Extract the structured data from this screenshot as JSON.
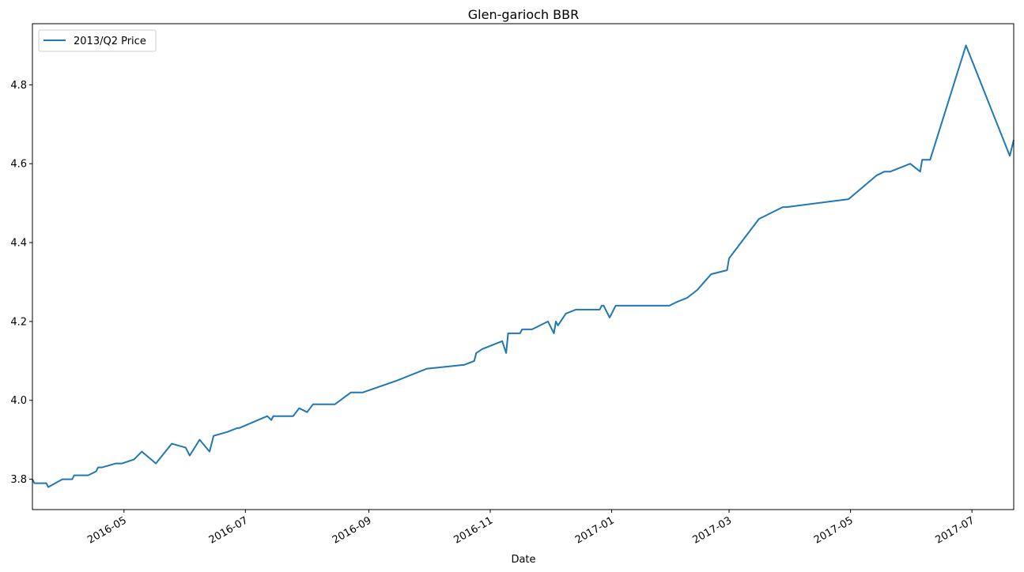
{
  "chart_data": {
    "type": "line",
    "title": "Glen-garioch BBR",
    "xlabel": "Date",
    "ylabel": "",
    "grid": false,
    "legend_position": "top-left",
    "xlim": [
      "2016-03-16",
      "2017-07-22"
    ],
    "ylim": [
      3.723,
      4.955
    ],
    "x_ticks": [
      "2016-05",
      "2016-07",
      "2016-09",
      "2016-11",
      "2017-01",
      "2017-03",
      "2017-05",
      "2017-07"
    ],
    "y_ticks": [
      "3.8",
      "4.0",
      "4.2",
      "4.4",
      "4.6",
      "4.8"
    ],
    "series": [
      {
        "name": "2013/Q2 Price",
        "color": "#1f77b4",
        "points": [
          [
            "2016-03-16",
            3.8
          ],
          [
            "2016-03-17",
            3.79
          ],
          [
            "2016-03-23",
            3.79
          ],
          [
            "2016-03-24",
            3.78
          ],
          [
            "2016-03-31",
            3.8
          ],
          [
            "2016-04-05",
            3.8
          ],
          [
            "2016-04-06",
            3.81
          ],
          [
            "2016-04-13",
            3.81
          ],
          [
            "2016-04-17",
            3.82
          ],
          [
            "2016-04-18",
            3.83
          ],
          [
            "2016-04-20",
            3.83
          ],
          [
            "2016-04-27",
            3.84
          ],
          [
            "2016-04-30",
            3.84
          ],
          [
            "2016-05-06",
            3.85
          ],
          [
            "2016-05-10",
            3.87
          ],
          [
            "2016-05-17",
            3.84
          ],
          [
            "2016-05-25",
            3.89
          ],
          [
            "2016-06-01",
            3.88
          ],
          [
            "2016-06-03",
            3.86
          ],
          [
            "2016-06-08",
            3.9
          ],
          [
            "2016-06-13",
            3.87
          ],
          [
            "2016-06-15",
            3.91
          ],
          [
            "2016-06-22",
            3.92
          ],
          [
            "2016-06-27",
            3.93
          ],
          [
            "2016-06-28",
            3.93
          ],
          [
            "2016-07-12",
            3.96
          ],
          [
            "2016-07-14",
            3.95
          ],
          [
            "2016-07-15",
            3.96
          ],
          [
            "2016-07-25",
            3.96
          ],
          [
            "2016-07-28",
            3.98
          ],
          [
            "2016-08-01",
            3.97
          ],
          [
            "2016-08-04",
            3.99
          ],
          [
            "2016-08-15",
            3.99
          ],
          [
            "2016-08-23",
            4.02
          ],
          [
            "2016-08-29",
            4.02
          ],
          [
            "2016-09-15",
            4.05
          ],
          [
            "2016-09-30",
            4.08
          ],
          [
            "2016-10-19",
            4.09
          ],
          [
            "2016-10-24",
            4.1
          ],
          [
            "2016-10-25",
            4.12
          ],
          [
            "2016-10-28",
            4.13
          ],
          [
            "2016-11-07",
            4.15
          ],
          [
            "2016-11-09",
            4.12
          ],
          [
            "2016-11-10",
            4.17
          ],
          [
            "2016-11-16",
            4.17
          ],
          [
            "2016-11-17",
            4.18
          ],
          [
            "2016-11-22",
            4.18
          ],
          [
            "2016-11-30",
            4.2
          ],
          [
            "2016-12-03",
            4.17
          ],
          [
            "2016-12-04",
            4.2
          ],
          [
            "2016-12-05",
            4.19
          ],
          [
            "2016-12-09",
            4.22
          ],
          [
            "2016-12-14",
            4.23
          ],
          [
            "2016-12-26",
            4.23
          ],
          [
            "2016-12-27",
            4.24
          ],
          [
            "2016-12-28",
            4.24
          ],
          [
            "2016-12-31",
            4.21
          ],
          [
            "2017-01-03",
            4.24
          ],
          [
            "2017-01-30",
            4.24
          ],
          [
            "2017-02-03",
            4.25
          ],
          [
            "2017-02-08",
            4.26
          ],
          [
            "2017-02-13",
            4.28
          ],
          [
            "2017-02-20",
            4.32
          ],
          [
            "2017-02-28",
            4.33
          ],
          [
            "2017-03-01",
            4.36
          ],
          [
            "2017-03-16",
            4.46
          ],
          [
            "2017-03-28",
            4.49
          ],
          [
            "2017-03-30",
            4.49
          ],
          [
            "2017-04-30",
            4.51
          ],
          [
            "2017-05-14",
            4.57
          ],
          [
            "2017-05-18",
            4.58
          ],
          [
            "2017-05-21",
            4.58
          ],
          [
            "2017-05-31",
            4.6
          ],
          [
            "2017-06-05",
            4.58
          ],
          [
            "2017-06-06",
            4.61
          ],
          [
            "2017-06-10",
            4.61
          ],
          [
            "2017-06-28",
            4.9
          ],
          [
            "2017-07-20",
            4.62
          ],
          [
            "2017-07-22",
            4.66
          ]
        ]
      }
    ]
  }
}
